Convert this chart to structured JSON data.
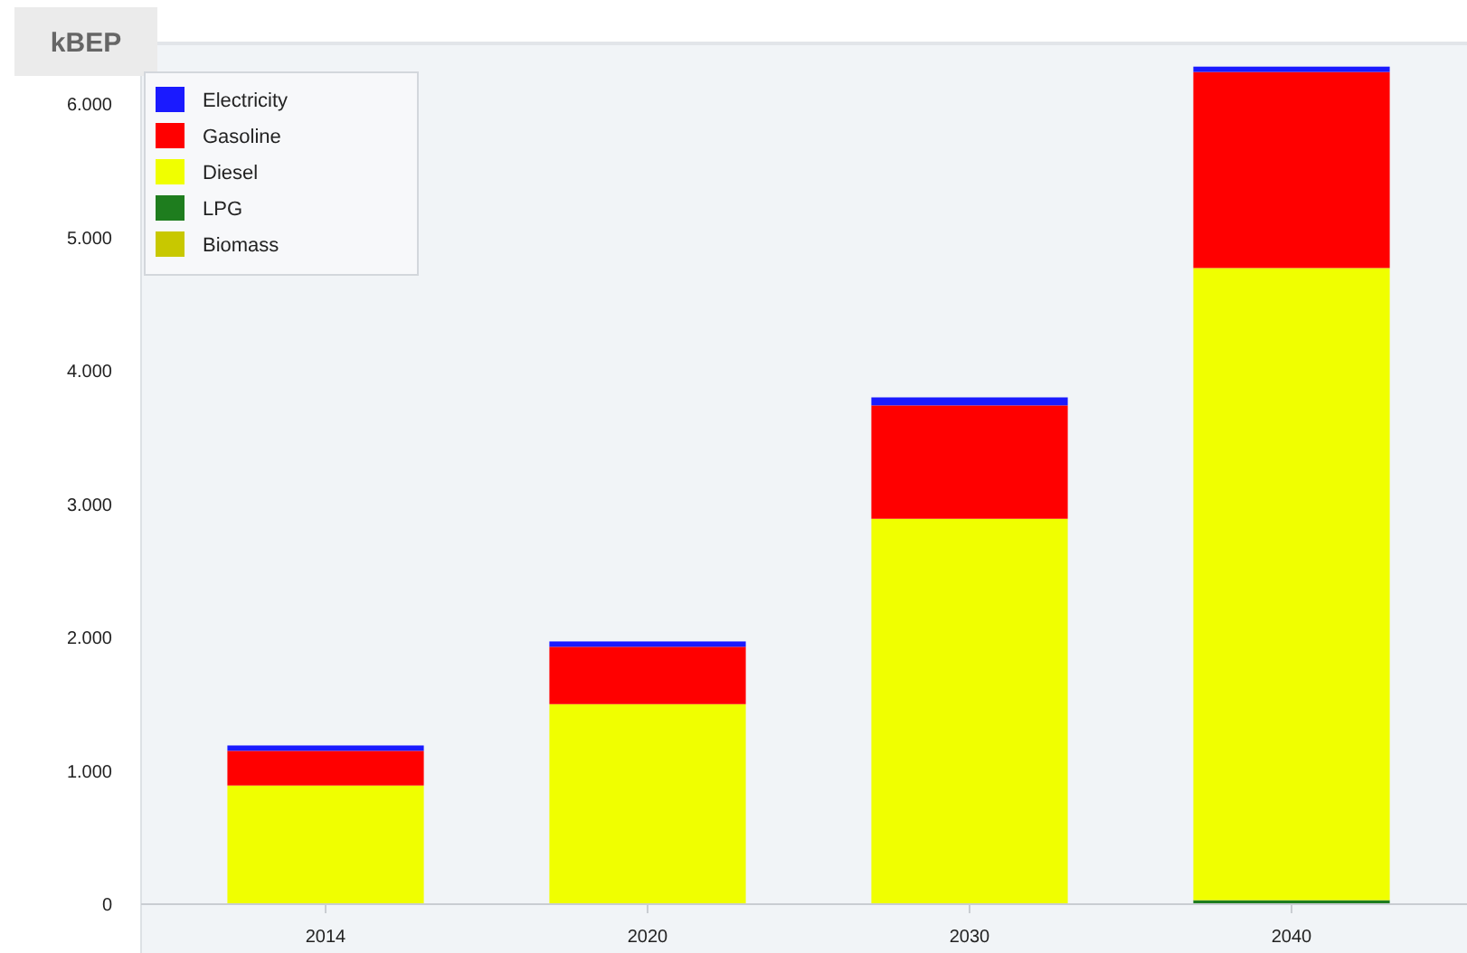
{
  "chart_data": {
    "type": "bar",
    "stacked": true,
    "ylabel": "kBEP",
    "categories": [
      "2014",
      "2020",
      "2030",
      "2040"
    ],
    "series": [
      {
        "name": "Biomass",
        "color": "#c8c800",
        "values": [
          0,
          0,
          0,
          0
        ]
      },
      {
        "name": "LPG",
        "color": "#1e7d1e",
        "values": [
          0,
          0,
          0,
          30
        ]
      },
      {
        "name": "Diesel",
        "color": "#f0ff00",
        "values": [
          890,
          1500,
          2890,
          4740
        ]
      },
      {
        "name": "Gasoline",
        "color": "#ff0000",
        "values": [
          260,
          430,
          850,
          1470
        ]
      },
      {
        "name": "Electricity",
        "color": "#1a1aff",
        "values": [
          40,
          40,
          60,
          40
        ]
      }
    ],
    "ylim": [
      0,
      6400
    ],
    "yticks": [
      0,
      {
        "value": 1000,
        "label": "1.000"
      },
      {
        "value": 2000,
        "label": "2.000"
      },
      {
        "value": 3000,
        "label": "3.000"
      },
      {
        "value": 4000,
        "label": "4.000"
      },
      {
        "value": 5000,
        "label": "5.000"
      },
      {
        "value": 6000,
        "label": "6.000"
      }
    ],
    "legend": "top left"
  }
}
